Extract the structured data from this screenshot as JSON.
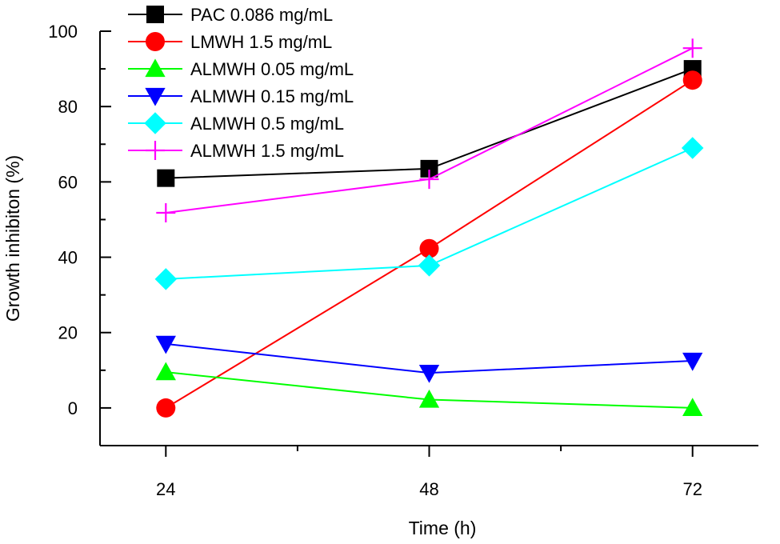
{
  "chart_data": {
    "type": "line",
    "title": "",
    "xlabel": "Time (h)",
    "ylabel": "Growth inhibiton (%)",
    "categories": [
      "24",
      "48",
      "72"
    ],
    "x": [
      24,
      48,
      72
    ],
    "xlim": [
      18,
      78
    ],
    "ylim": [
      -10,
      100
    ],
    "yticks": [
      0,
      20,
      40,
      60,
      80,
      100
    ],
    "xticks": [
      24,
      48,
      72
    ],
    "grid": false,
    "legend_position": "top-left",
    "series": [
      {
        "name": "PAC 0.086 mg/mL",
        "values": [
          61,
          63.5,
          90
        ],
        "color": "#000000",
        "marker": "square"
      },
      {
        "name": "LMWH 1.5 mg/mL",
        "values": [
          0,
          42.3,
          87
        ],
        "color": "#ff0000",
        "marker": "circle"
      },
      {
        "name": "ALMWH 0.05 mg/mL",
        "values": [
          9.5,
          2.2,
          0
        ],
        "color": "#00ff00",
        "marker": "triangle-up"
      },
      {
        "name": "ALMWH 0.15 mg/mL",
        "values": [
          17,
          9.3,
          12.5
        ],
        "color": "#0000ff",
        "marker": "triangle-down"
      },
      {
        "name": "ALMWH 0.5 mg/mL",
        "values": [
          34.2,
          37.8,
          69
        ],
        "color": "#00ffff",
        "marker": "diamond"
      },
      {
        "name": "ALMWH 1.5 mg/mL",
        "values": [
          51.8,
          60.7,
          95.5
        ],
        "color": "#ff00ff",
        "marker": "plus"
      }
    ]
  }
}
